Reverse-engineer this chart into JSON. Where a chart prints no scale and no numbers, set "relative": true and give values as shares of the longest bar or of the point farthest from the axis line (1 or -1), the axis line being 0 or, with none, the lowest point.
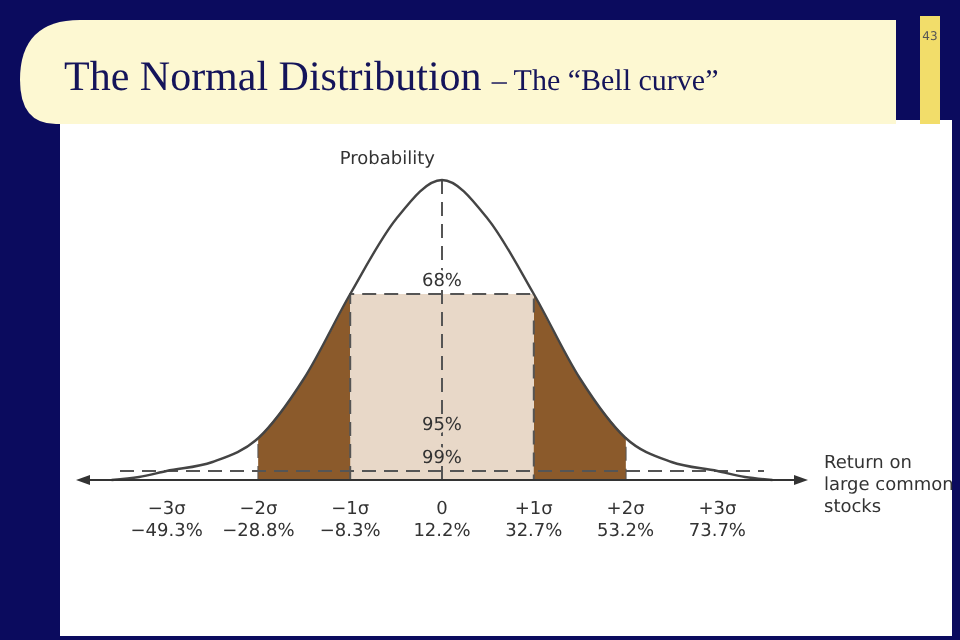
{
  "chart_data": {
    "type": "line",
    "title": "The Normal Distribution",
    "subtitle": "– The “Bell curve”",
    "ylabel": "Probability",
    "xlabel": "Return on large common stocks",
    "annotations": [
      "43",
      {
        "text": "99%",
        "x": 12.2,
        "y": 0.03
      },
      "−3σ",
      "−2σ",
      "−1σ",
      "0",
      "+1σ",
      "+2σ",
      "+3σ"
    ],
    "relative": true,
    "xlim": [
      -67.75,
      92.15
    ],
    "xticks": [
      {
        "value": -49.3,
        "label": "−49.3%"
      },
      {
        "value": -28.8,
        "label": "−28.8%"
      },
      {
        "value": -8.3,
        "label": "−8.3%"
      },
      {
        "value": 12.2,
        "label": "12.2%"
      },
      {
        "value": 32.7,
        "label": "32.7%"
      },
      {
        "value": 53.2,
        "label": "53.2%"
      },
      {
        "value": 73.7,
        "label": "73.7%"
      }
    ],
    "series": [
      {
        "color": "#444444",
        "x": [
          -61.6,
          -55.45,
          -49.3,
          -39.05,
          -28.8,
          -18.55,
          -8.3,
          1.95,
          12.2,
          22.45,
          32.7,
          42.95,
          53.2,
          63.45,
          73.7,
          79.85,
          86.0
        ],
        "values": [
          0.0,
          0.01,
          0.03,
          0.06,
          0.14,
          0.34,
          0.62,
          0.87,
          1,
          0.87,
          0.62,
          0.34,
          0.14,
          0.06,
          0.03,
          0.01,
          0.0
        ]
      },
      {
        "type": "area",
        "color": "#8b5a2b",
        "x": [
          -28.8,
          -18.55,
          -8.3,
          12.2,
          32.7,
          42.95,
          53.2
        ],
        "values": [
          0.14,
          0.34,
          0.62,
          null,
          0.62,
          0.34,
          0.14
        ]
      }
    ],
    "bands": [
      {
        "axis": "x",
        "from": -8.3,
        "to": 32.7,
        "label": "68%",
        "color": "#e8d8c8"
      },
      {
        "axis": "x",
        "from": -28.8,
        "to": 53.2,
        "label": "95%",
        "color": "#8b5a2b"
      }
    ],
    "ref_lines": [
      {
        "axis": "x",
        "value": 12.2,
        "line_style": "dashed"
      },
      {
        "axis": "y",
        "value": 0.03,
        "line_style": "dashed"
      }
    ]
  }
}
